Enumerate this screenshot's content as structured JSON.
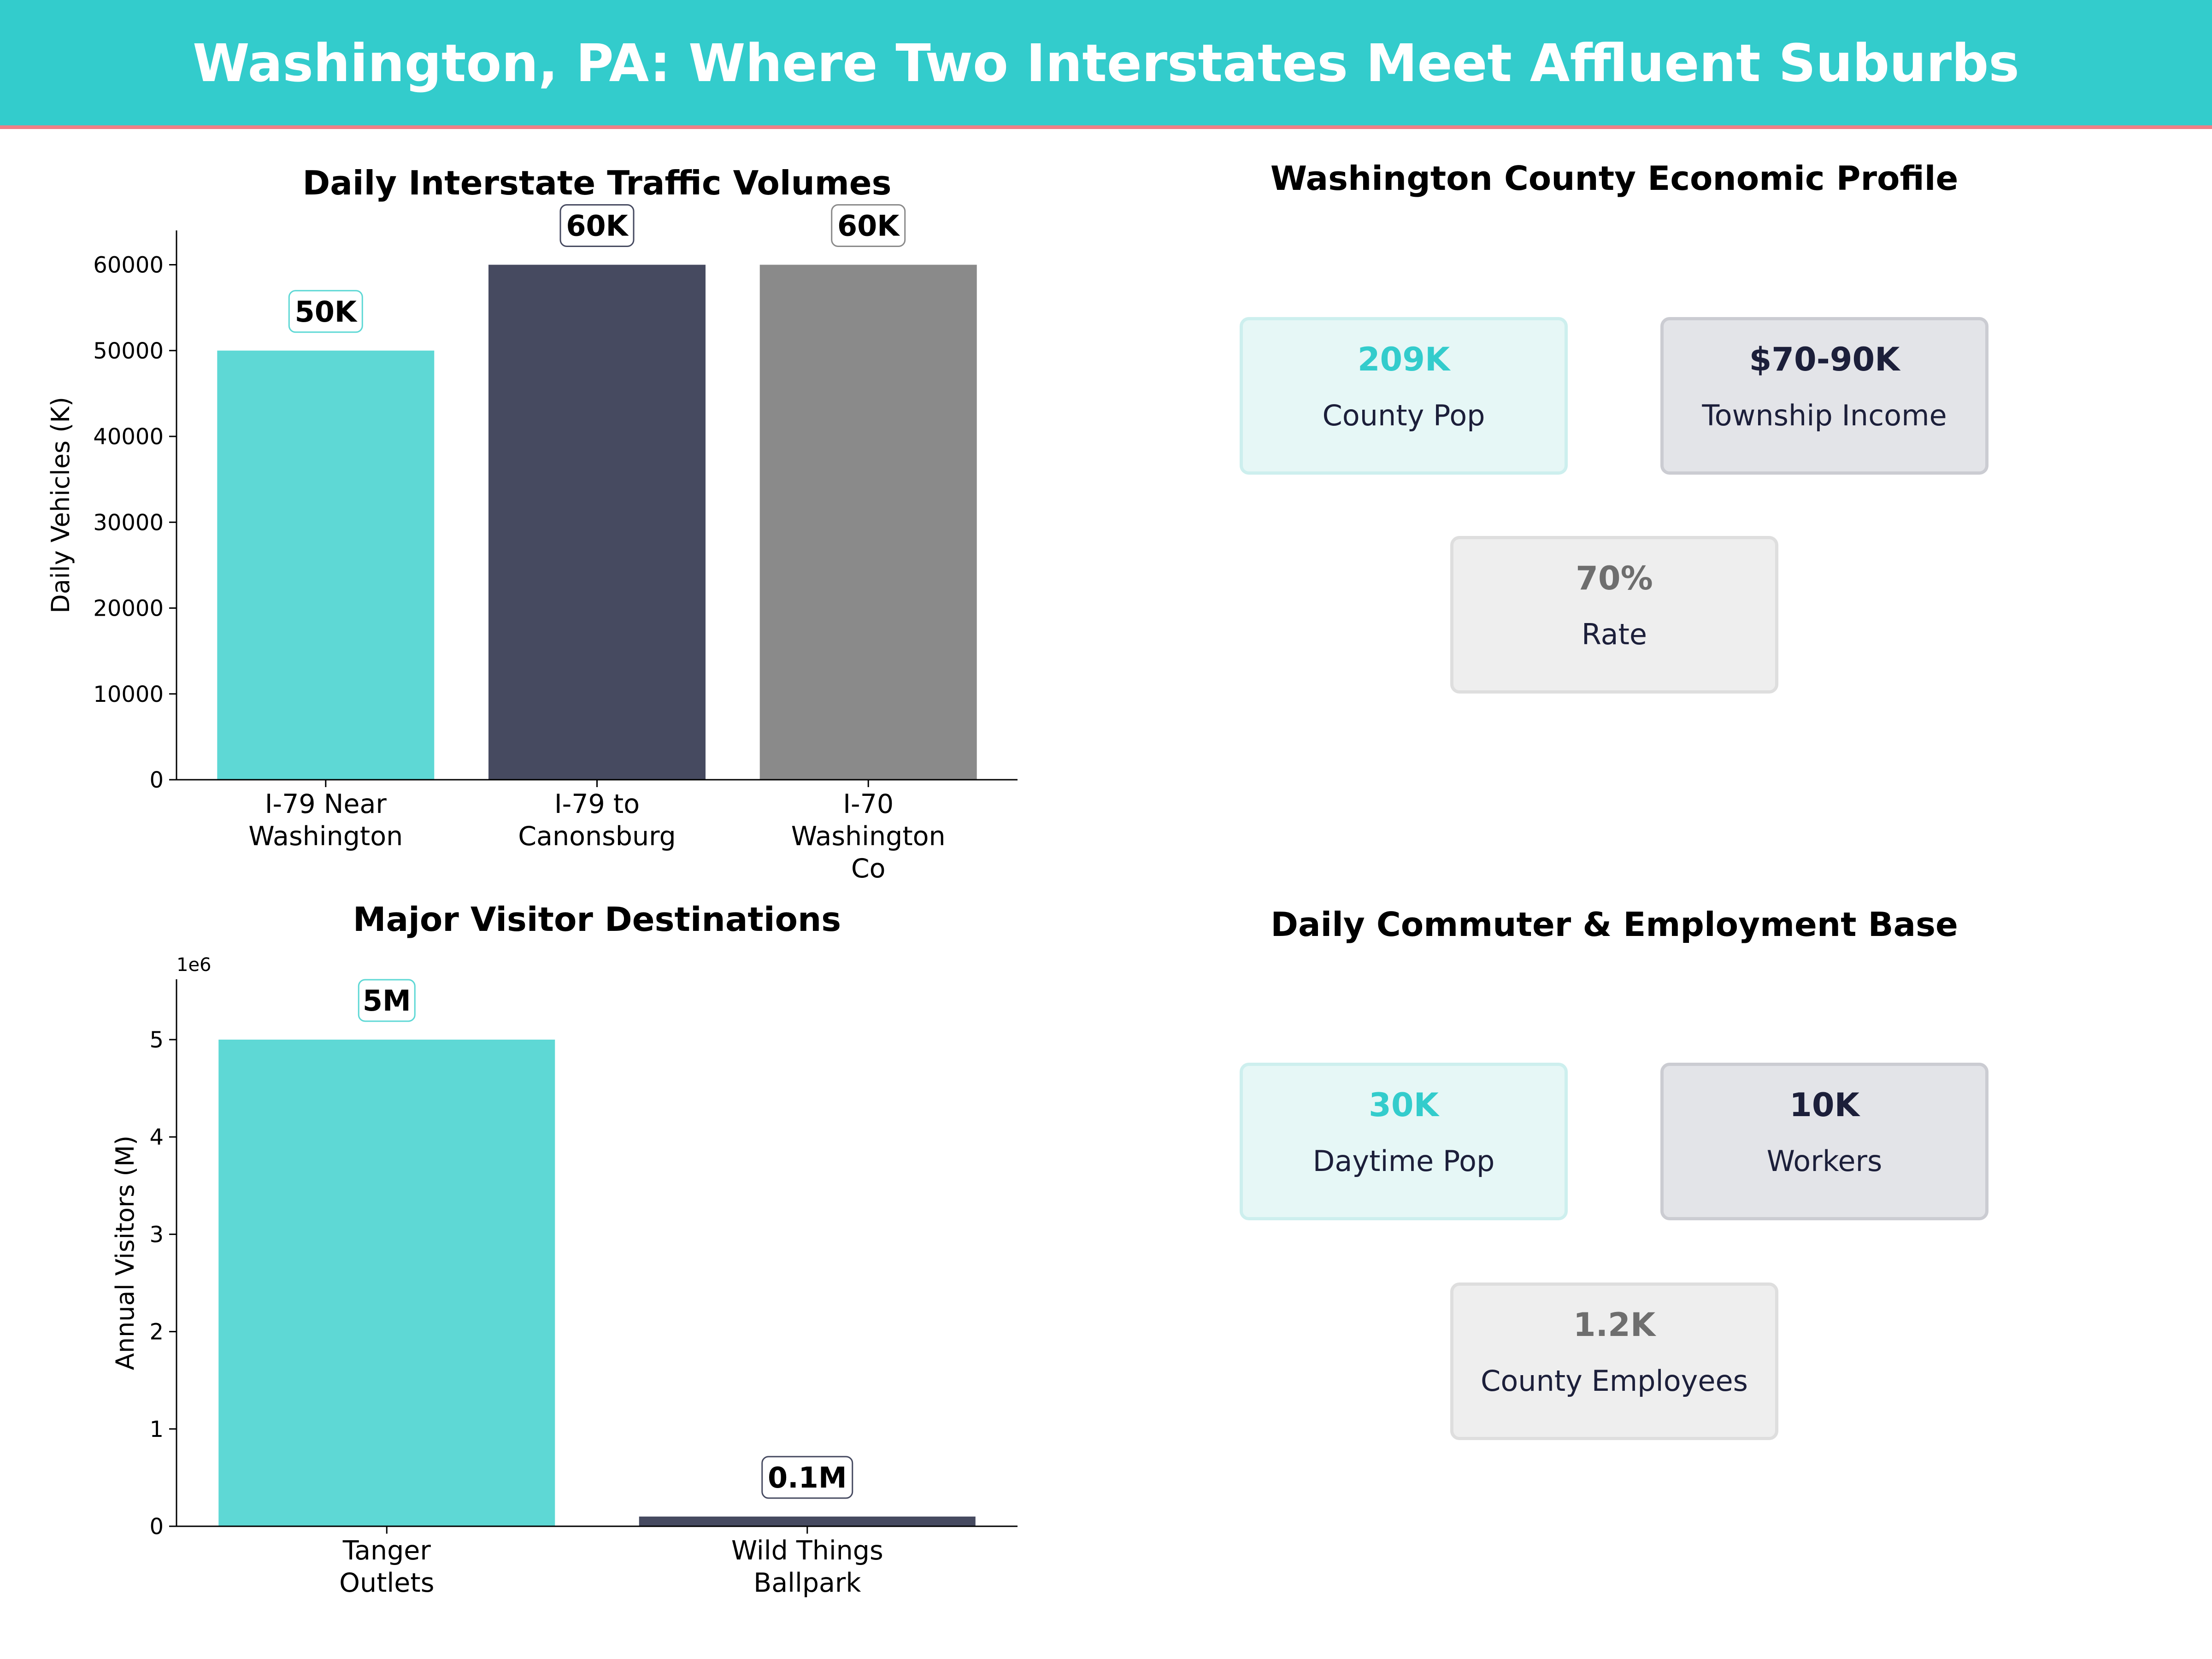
{
  "header": {
    "title": "Washington, PA: Where Two Interstates Meet Affluent Suburbs"
  },
  "colors": {
    "banner": "#33cccc",
    "banner_border": "#ef7f86",
    "teal": "#5ed8d5",
    "navy": "#464a60",
    "gray": "#8a8a8a"
  },
  "chart_data": [
    {
      "type": "bar",
      "title": "Daily Interstate Traffic Volumes",
      "xlabel": "",
      "ylabel": "Daily Vehicles (K)",
      "categories": [
        [
          "I-79 Near",
          "Washington"
        ],
        [
          "I-79 to",
          "Canonsburg"
        ],
        [
          "I-70",
          "Washington",
          "Co"
        ]
      ],
      "values": [
        50000,
        60000,
        60000
      ],
      "value_labels": [
        "50K",
        "60K",
        "60K"
      ],
      "bar_colors": [
        "#5ed8d5",
        "#464a60",
        "#8a8a8a"
      ],
      "label_box_colors": [
        "#5ed8d5",
        "#464a60",
        "#8a8a8a"
      ],
      "ylim": [
        0,
        64000
      ],
      "yticks": [
        0,
        10000,
        20000,
        30000,
        40000,
        50000,
        60000
      ],
      "ytick_labels": [
        "0",
        "10000",
        "20000",
        "30000",
        "40000",
        "50000",
        "60000"
      ],
      "grid": false
    },
    {
      "type": "bar",
      "title": "Major Visitor Destinations",
      "xlabel": "",
      "ylabel": "Annual Visitors (M)",
      "offset_label": "1e6",
      "categories": [
        [
          "Tanger",
          "Outlets"
        ],
        [
          "Wild Things",
          "Ballpark"
        ]
      ],
      "values": [
        5000000,
        100000
      ],
      "value_labels": [
        "5M",
        "0.1M"
      ],
      "bar_colors": [
        "#5ed8d5",
        "#464a60"
      ],
      "label_box_colors": [
        "#5ed8d5",
        "#464a60"
      ],
      "ylim": [
        0,
        5620000
      ],
      "yticks": [
        0,
        1000000,
        2000000,
        3000000,
        4000000,
        5000000
      ],
      "ytick_labels": [
        "0",
        "1",
        "2",
        "3",
        "4",
        "5"
      ],
      "grid": false
    }
  ],
  "economic_profile": {
    "title": "Washington County Economic Profile",
    "cards": [
      {
        "value": "209K",
        "label": "County Pop",
        "style": "teal"
      },
      {
        "value": "$70-90K",
        "label": "Township Income",
        "style": "navy"
      },
      {
        "value": "70%",
        "label": "Rate",
        "style": "gray"
      }
    ]
  },
  "commuter_base": {
    "title": "Daily Commuter & Employment Base",
    "cards": [
      {
        "value": "30K",
        "label": "Daytime Pop",
        "style": "teal"
      },
      {
        "value": "10K",
        "label": "Workers",
        "style": "navy"
      },
      {
        "value": "1.2K",
        "label": "County Employees",
        "style": "gray"
      }
    ]
  }
}
